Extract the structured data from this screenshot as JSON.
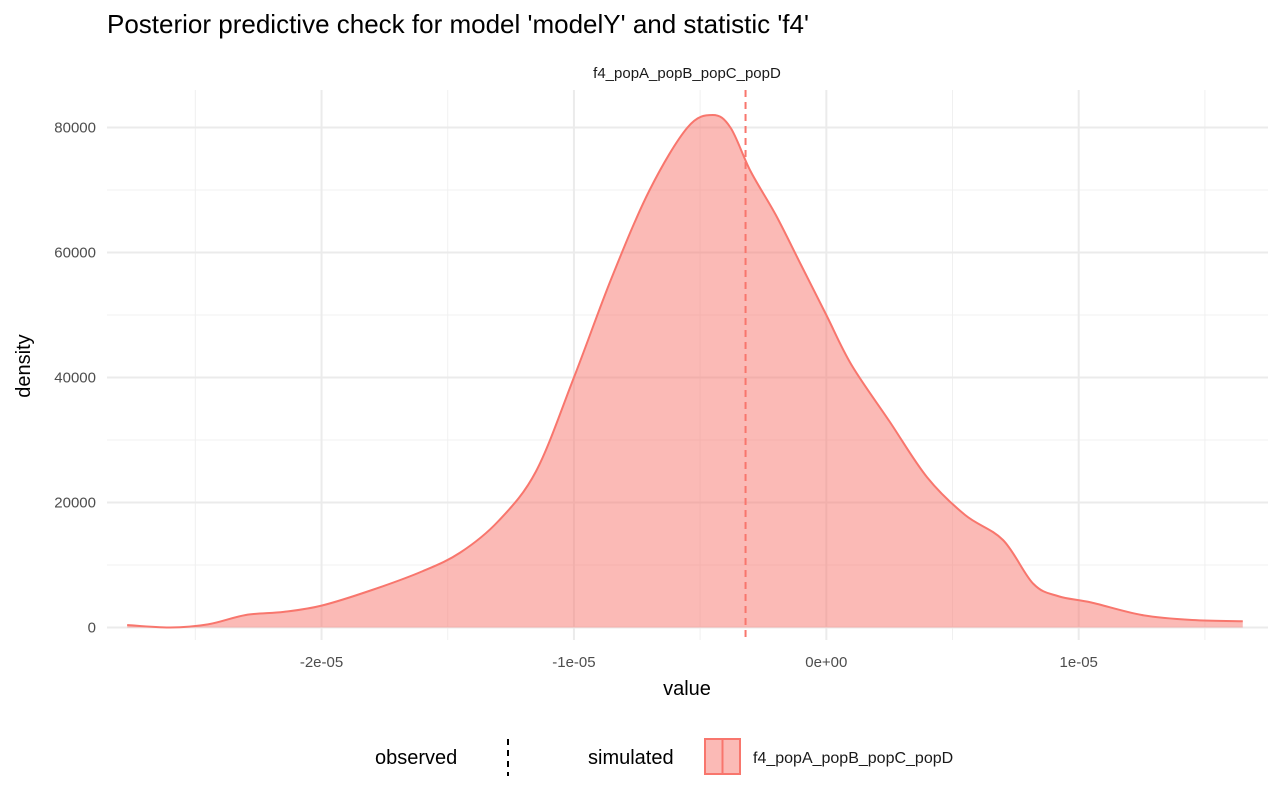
{
  "chart_data": {
    "type": "area",
    "title": "Posterior predictive check for model 'modelY' and statistic 'f4'",
    "facet_label": "f4_popA_popB_popC_popD",
    "xlabel": "value",
    "ylabel": "density",
    "xlim": [
      -2.85e-05,
      1.75e-05
    ],
    "ylim": [
      -2000,
      86000
    ],
    "x_ticks": [
      -2e-05,
      -1e-05,
      0,
      1e-05
    ],
    "x_tick_labels": [
      "-2e-05",
      "-1e-05",
      "0e+00",
      "1e-05"
    ],
    "y_ticks": [
      0,
      20000,
      40000,
      60000,
      80000
    ],
    "y_tick_labels": [
      "0",
      "20000",
      "40000",
      "60000",
      "80000"
    ],
    "grid": true,
    "series": [
      {
        "name": "f4_popA_popB_popC_popD",
        "group": "simulated",
        "color": "#F8766D",
        "fill": "#F8766D",
        "fill_opacity": 0.5,
        "x": [
          -2.77e-05,
          -2.6e-05,
          -2.45e-05,
          -2.3e-05,
          -2.15e-05,
          -2e-05,
          -1.8e-05,
          -1.6e-05,
          -1.45e-05,
          -1.3e-05,
          -1.15e-05,
          -1e-05,
          -8.5e-06,
          -7e-06,
          -5.5e-06,
          -4.5e-06,
          -3.8e-06,
          -3e-06,
          -2e-06,
          -1e-06,
          0.0,
          1e-06,
          2.5e-06,
          4e-06,
          5.5e-06,
          7e-06,
          8.2e-06,
          9.2e-06,
          1.05e-05,
          1.25e-05,
          1.45e-05,
          1.65e-05
        ],
        "y": [
          400,
          0,
          500,
          2000,
          2500,
          3500,
          6000,
          9000,
          12000,
          17000,
          25000,
          40000,
          56000,
          70000,
          80000,
          82000,
          80000,
          73000,
          66000,
          58000,
          50000,
          42000,
          33000,
          24000,
          18000,
          14000,
          7000,
          5000,
          4000,
          2000,
          1200,
          1000
        ]
      }
    ],
    "observed": {
      "name": "observed",
      "x": -3.2e-06,
      "color": "#F8766D",
      "linetype": "dashed"
    },
    "legend": {
      "position": "bottom",
      "observed_title": "observed",
      "simulated_title": "simulated",
      "simulated_label": "f4_popA_popB_popC_popD",
      "observed_key_color": "#000000"
    }
  }
}
